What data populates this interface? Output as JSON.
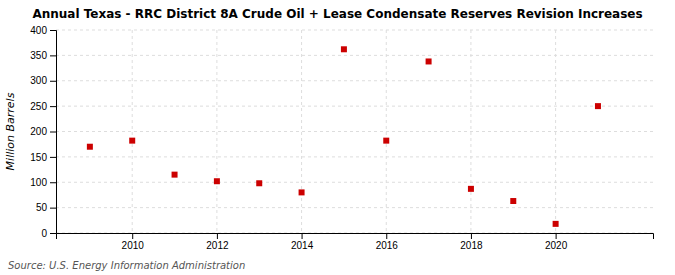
{
  "chart_data": {
    "type": "scatter",
    "title": "Annual Texas - RRC District 8A Crude Oil + Lease Condensate Reserves Revision Increases",
    "ylabel": "Million Barrels",
    "annotation": "Source: U.S. Energy Information Administration",
    "x": [
      2009,
      2010,
      2011,
      2012,
      2013,
      2014,
      2015,
      2016,
      2017,
      2018,
      2019,
      2020,
      2021
    ],
    "values": [
      170,
      182,
      115,
      102,
      98,
      80,
      362,
      182,
      338,
      87,
      63,
      18,
      250
    ],
    "color": "#cc0000",
    "marker": "square",
    "xlim": [
      2008.2,
      2022.3
    ],
    "xticks": [
      2010,
      2012,
      2014,
      2016,
      2018,
      2020
    ],
    "ylim": [
      0,
      400
    ],
    "yticks": [
      0,
      50,
      100,
      150,
      200,
      250,
      300,
      350,
      400
    ],
    "grid": true
  }
}
